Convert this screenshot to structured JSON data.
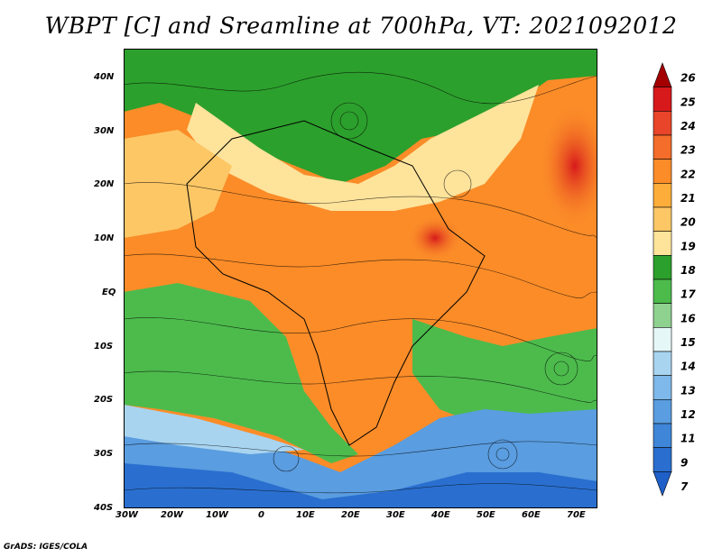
{
  "title": "WBPT [C] and Sreamline at 700hPa, VT: 2021092012",
  "credit": "GrADS: IGES/COLA",
  "map": {
    "lon_ticks": [
      "30W",
      "20W",
      "10W",
      "0",
      "10E",
      "20E",
      "30E",
      "40E",
      "50E",
      "60E",
      "70E"
    ],
    "lat_ticks": [
      "40N",
      "30N",
      "20N",
      "10N",
      "EQ",
      "10S",
      "20S",
      "30S",
      "40S"
    ],
    "extent": {
      "lon": [
        -30,
        75
      ],
      "lat": [
        -40,
        45
      ]
    }
  },
  "colorbar": {
    "labels": [
      "26",
      "25",
      "24",
      "23",
      "22",
      "21",
      "20",
      "19",
      "18",
      "17",
      "16",
      "15",
      "14",
      "13",
      "12",
      "11",
      "9",
      "7"
    ],
    "colors": [
      "#a50000",
      "#d7191c",
      "#e8452a",
      "#f46d2a",
      "#fb8c28",
      "#fdae3a",
      "#fdc766",
      "#fee39b",
      "#2ca02c",
      "#4cbb4c",
      "#8fd18f",
      "#e6f7f7",
      "#a8d4f0",
      "#7fb8ea",
      "#5a9de0",
      "#3f86d8",
      "#2a6fcf",
      "#1f5fc8"
    ]
  },
  "legend_colors": {
    "warm_max": "#d7191c",
    "warm": "#fb8c28",
    "tan": "#fee39b",
    "green": "#2ca02c",
    "light_blue": "#a8d4f0",
    "blue": "#2a6fcf"
  }
}
